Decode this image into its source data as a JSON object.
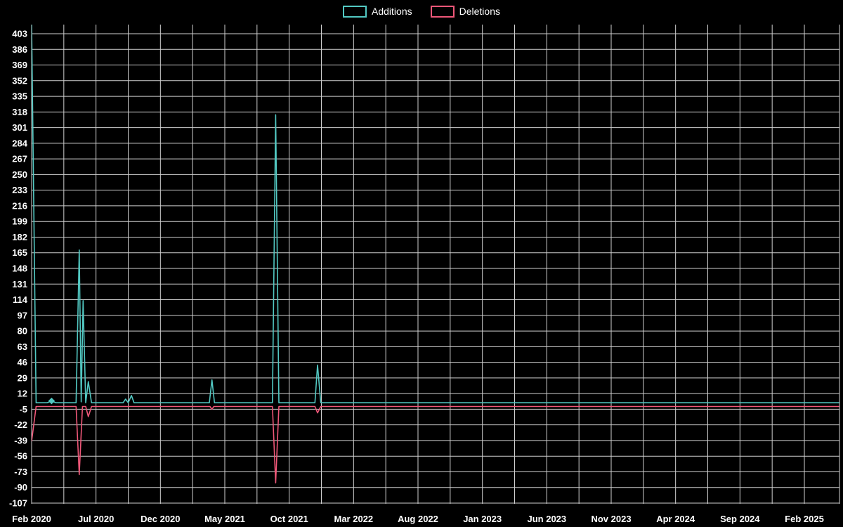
{
  "window": {
    "background": "#000000"
  },
  "legend": {
    "items": [
      {
        "label": "Additions",
        "color": "#52c8c2"
      },
      {
        "label": "Deletions",
        "color": "#ee5778"
      }
    ]
  },
  "chart_data": {
    "type": "line",
    "title": "",
    "xlabel": "",
    "ylabel": "",
    "x_unit": "months since Feb 2020",
    "xlim": [
      0,
      62.7
    ],
    "ylim": [
      -107,
      413
    ],
    "grid": true,
    "legend_position": "top-center",
    "background": "#000000",
    "grid_color": "#d0d0d0",
    "text_color": "#ffffff",
    "y_ticks": [
      403,
      386,
      369,
      352,
      335,
      318,
      301,
      284,
      267,
      250,
      233,
      216,
      199,
      182,
      165,
      148,
      131,
      114,
      97,
      80,
      63,
      46,
      29,
      12,
      -5,
      -22,
      -39,
      -56,
      -73,
      -90,
      -107
    ],
    "x_ticks": [
      {
        "pos": 0,
        "label": "Feb 2020"
      },
      {
        "pos": 5,
        "label": "Jul 2020"
      },
      {
        "pos": 10,
        "label": "Dec 2020"
      },
      {
        "pos": 15,
        "label": "May 2021"
      },
      {
        "pos": 20,
        "label": "Oct 2021"
      },
      {
        "pos": 25,
        "label": "Mar 2022"
      },
      {
        "pos": 30,
        "label": "Aug 2022"
      },
      {
        "pos": 35,
        "label": "Jan 2023"
      },
      {
        "pos": 40,
        "label": "Jun 2023"
      },
      {
        "pos": 45,
        "label": "Nov 2023"
      },
      {
        "pos": 50,
        "label": "Apr 2024"
      },
      {
        "pos": 55,
        "label": "Sep 2024"
      },
      {
        "pos": 60,
        "label": "Feb 2025"
      }
    ],
    "x_grid_step": 2.5,
    "series": [
      {
        "name": "Additions",
        "color": "#52c8c2",
        "points": [
          [
            0,
            413
          ],
          [
            0.35,
            2
          ],
          [
            1.2,
            2
          ],
          [
            1.55,
            4
          ],
          [
            1.9,
            2
          ],
          [
            3.45,
            2
          ],
          [
            3.7,
            168
          ],
          [
            3.85,
            3
          ],
          [
            4.0,
            113
          ],
          [
            4.2,
            2
          ],
          [
            4.4,
            25
          ],
          [
            4.65,
            2
          ],
          [
            7.1,
            2
          ],
          [
            7.3,
            6
          ],
          [
            7.5,
            2
          ],
          [
            7.75,
            10
          ],
          [
            7.95,
            2
          ],
          [
            13.8,
            2
          ],
          [
            14.0,
            27
          ],
          [
            14.2,
            2
          ],
          [
            18.7,
            2
          ],
          [
            18.95,
            315
          ],
          [
            19.2,
            2
          ],
          [
            22.0,
            2
          ],
          [
            22.2,
            43
          ],
          [
            22.45,
            2
          ],
          [
            62.7,
            2
          ]
        ]
      },
      {
        "name": "Deletions",
        "color": "#ee5778",
        "points": [
          [
            0,
            -40
          ],
          [
            0.35,
            -2
          ],
          [
            3.45,
            -2
          ],
          [
            3.7,
            -76
          ],
          [
            3.95,
            -2
          ],
          [
            4.2,
            -2
          ],
          [
            4.4,
            -13
          ],
          [
            4.65,
            -2
          ],
          [
            13.85,
            -2
          ],
          [
            14.0,
            -5
          ],
          [
            14.15,
            -2
          ],
          [
            18.7,
            -2
          ],
          [
            18.95,
            -85
          ],
          [
            19.2,
            -2
          ],
          [
            22.0,
            -2
          ],
          [
            22.2,
            -9
          ],
          [
            22.45,
            -2
          ],
          [
            62.7,
            -2
          ]
        ]
      }
    ],
    "markers": [
      {
        "series": "Additions",
        "x": 1.55,
        "y": 4,
        "shape": "diamond"
      }
    ]
  }
}
